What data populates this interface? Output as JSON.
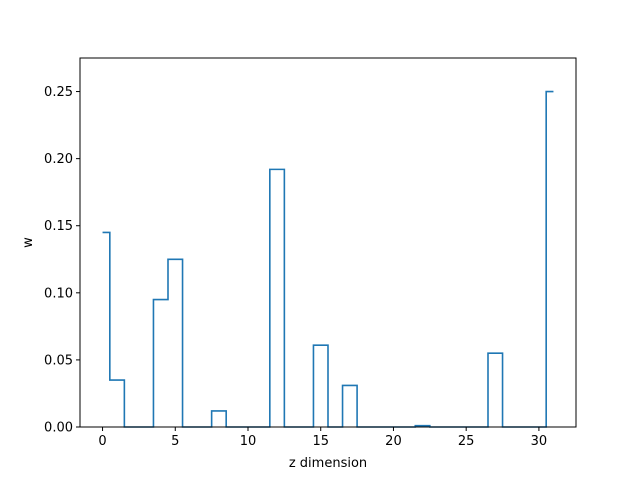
{
  "chart_data": {
    "type": "line",
    "drawstyle": "steps-mid",
    "title": "",
    "xlabel": "z dimension",
    "ylabel": "w",
    "xlim": [
      -1.55,
      32.55
    ],
    "ylim": [
      0,
      0.275
    ],
    "xticks": [
      0,
      5,
      10,
      15,
      20,
      25,
      30
    ],
    "xtick_labels": [
      "0",
      "5",
      "10",
      "15",
      "20",
      "25",
      "30"
    ],
    "yticks": [
      0,
      0.05,
      0.1,
      0.15,
      0.2,
      0.25
    ],
    "ytick_labels": [
      "0.00",
      "0.05",
      "0.10",
      "0.15",
      "0.20",
      "0.25"
    ],
    "grid": false,
    "legend": "none",
    "series": [
      {
        "color": "#1f77b4",
        "x": [
          0,
          1,
          2,
          3,
          4,
          5,
          6,
          7,
          8,
          9,
          10,
          11,
          12,
          13,
          14,
          15,
          16,
          17,
          18,
          19,
          20,
          21,
          22,
          23,
          24,
          25,
          26,
          27,
          28,
          29,
          30,
          31
        ],
        "values": [
          0.145,
          0.035,
          0,
          0,
          0.095,
          0.125,
          0,
          0,
          0.012,
          0,
          0,
          0,
          0.192,
          0,
          0,
          0.061,
          0,
          0.031,
          0,
          0,
          0,
          0,
          0.001,
          0,
          0,
          0,
          0,
          0.055,
          0,
          0,
          0,
          0.25
        ]
      }
    ]
  }
}
